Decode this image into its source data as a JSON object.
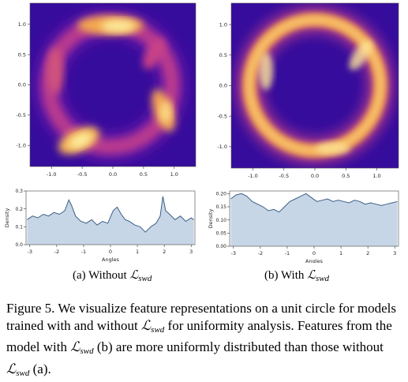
{
  "figure": {
    "caption_parts": {
      "label": "Figure 5.",
      "text1": "We visualize feature representations on a unit circle for models trained with and without",
      "text2": "for uniformity analysis. Features from the model with",
      "text3": "(b) are more uniformly distributed than those without",
      "text4": "(a)."
    },
    "loss_symbol": "ℒ",
    "loss_subscript": "swd"
  },
  "panels": {
    "a": {
      "caption_prefix": "(a) Without"
    },
    "b": {
      "caption_prefix": "(b) With"
    }
  },
  "colors": {
    "hist_fill": "#c7d6e6",
    "hist_line": "#3b5e87",
    "map_bg": "#3a0aa0"
  },
  "chart_data": [
    {
      "type": "heatmap",
      "panel": "a",
      "xlim": [
        -1.35,
        1.35
      ],
      "ylim": [
        -1.35,
        1.35
      ],
      "xticks": [
        -1.0,
        -0.5,
        0.0,
        0.5,
        1.0
      ],
      "yticks": [
        1.0,
        0.5,
        0.0,
        -0.5,
        -1.0
      ],
      "tick_labels": [
        "-1.0",
        "-0.5",
        "0.0",
        "0.5",
        "1.0"
      ],
      "description": "kernel density of features on unit circle, uneven with hot spots"
    },
    {
      "type": "area",
      "panel": "a",
      "xlabel": "Angles",
      "ylabel": "Density",
      "xlim": [
        -3.14,
        3.14
      ],
      "ylim": [
        0.0,
        0.3
      ],
      "xticks": [
        -3,
        -2,
        -1,
        0,
        1,
        2,
        3
      ],
      "yticks": [
        0.0,
        0.1,
        0.2,
        0.3
      ],
      "ytick_labels": [
        "0.0",
        "0.1",
        "0.2",
        "0.3"
      ],
      "x": [
        -3.1,
        -2.9,
        -2.7,
        -2.5,
        -2.3,
        -2.1,
        -1.9,
        -1.7,
        -1.55,
        -1.45,
        -1.3,
        -1.1,
        -0.9,
        -0.7,
        -0.5,
        -0.3,
        -0.1,
        0.1,
        0.25,
        0.4,
        0.55,
        0.7,
        0.9,
        1.1,
        1.3,
        1.5,
        1.7,
        1.85,
        1.95,
        2.05,
        2.2,
        2.4,
        2.6,
        2.8,
        3.0,
        3.1
      ],
      "y": [
        0.14,
        0.16,
        0.15,
        0.17,
        0.16,
        0.18,
        0.17,
        0.19,
        0.25,
        0.22,
        0.16,
        0.13,
        0.12,
        0.14,
        0.11,
        0.13,
        0.12,
        0.19,
        0.21,
        0.17,
        0.14,
        0.13,
        0.11,
        0.1,
        0.07,
        0.1,
        0.12,
        0.16,
        0.27,
        0.19,
        0.17,
        0.14,
        0.16,
        0.13,
        0.15,
        0.14
      ]
    },
    {
      "type": "heatmap",
      "panel": "b",
      "xlim": [
        -1.35,
        1.35
      ],
      "ylim": [
        -1.35,
        1.35
      ],
      "xticks": [
        -1.0,
        -0.5,
        0.0,
        0.5,
        1.0
      ],
      "yticks": [
        1.0,
        0.5,
        0.0,
        -0.5,
        -1.0
      ],
      "tick_labels": [
        "-1.0",
        "-0.5",
        "0.0",
        "0.5",
        "1.0"
      ],
      "description": "kernel density of features on unit circle, nearly uniform ring"
    },
    {
      "type": "area",
      "panel": "b",
      "xlabel": "Angles",
      "ylabel": "Density",
      "xlim": [
        -3.14,
        3.14
      ],
      "ylim": [
        0.0,
        0.21
      ],
      "xticks": [
        -3,
        -2,
        -1,
        0,
        1,
        2,
        3
      ],
      "yticks": [
        0.0,
        0.05,
        0.1,
        0.15,
        0.2
      ],
      "ytick_labels": [
        "0.00",
        "0.05",
        "0.10",
        "0.15",
        "0.20"
      ],
      "x": [
        -3.1,
        -2.9,
        -2.7,
        -2.5,
        -2.3,
        -2.1,
        -1.9,
        -1.7,
        -1.5,
        -1.3,
        -1.1,
        -0.9,
        -0.7,
        -0.5,
        -0.3,
        -0.1,
        0.1,
        0.3,
        0.5,
        0.7,
        0.9,
        1.1,
        1.3,
        1.5,
        1.7,
        1.9,
        2.1,
        2.3,
        2.5,
        2.7,
        2.9,
        3.1
      ],
      "y": [
        0.18,
        0.195,
        0.2,
        0.19,
        0.17,
        0.16,
        0.15,
        0.135,
        0.14,
        0.13,
        0.15,
        0.17,
        0.18,
        0.19,
        0.2,
        0.185,
        0.17,
        0.175,
        0.18,
        0.17,
        0.175,
        0.17,
        0.165,
        0.175,
        0.17,
        0.16,
        0.165,
        0.16,
        0.155,
        0.16,
        0.165,
        0.17
      ]
    }
  ]
}
